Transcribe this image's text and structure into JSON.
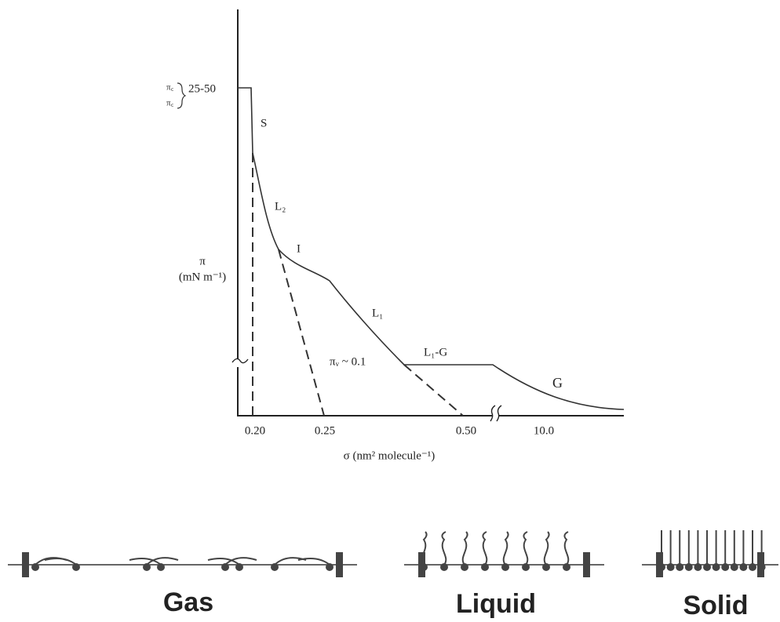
{
  "isotherm": {
    "pressure_markers": [
      "π꜀",
      "π꜀"
    ],
    "collapse_range": "25-50",
    "y_label": [
      "π",
      "(mN m⁻¹)"
    ],
    "x_label": "σ (nm² molecule⁻¹)",
    "x_tick_labels": [
      "0.20",
      "0.25",
      "0.50",
      "10.0"
    ],
    "phase_labels": [
      "S",
      "L₂",
      "I",
      "L₁",
      "L₁-G",
      "G"
    ],
    "annotation": "πᵥ ~ 0.1"
  },
  "phases": [
    "Gas",
    "Liquid",
    "Solid"
  ]
}
